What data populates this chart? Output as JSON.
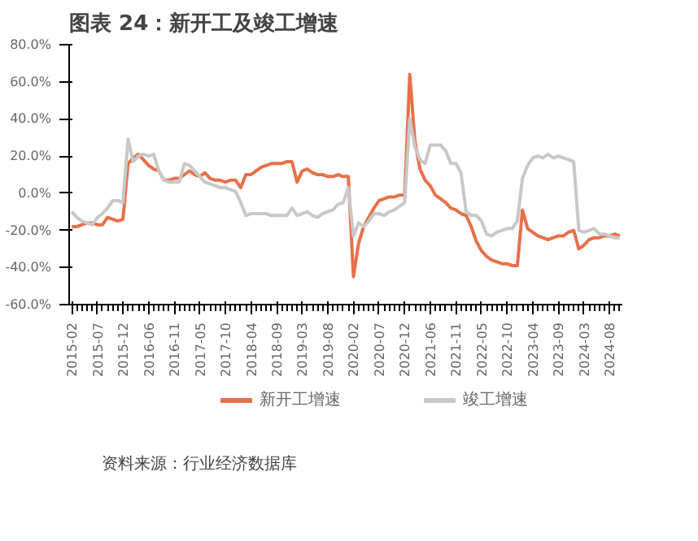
{
  "chart_data": {
    "type": "line",
    "title": "图表 24：新开工及竣工增速",
    "categories": [
      "2015-02",
      null,
      null,
      null,
      null,
      "2015-07",
      null,
      null,
      null,
      null,
      "2015-12",
      null,
      null,
      null,
      null,
      "2016-06",
      null,
      null,
      null,
      null,
      "2016-11",
      null,
      null,
      null,
      null,
      "2017-05",
      null,
      null,
      null,
      null,
      "2017-10",
      null,
      null,
      null,
      null,
      "2018-04",
      null,
      null,
      null,
      null,
      "2018-09",
      null,
      null,
      null,
      null,
      "2019-03",
      null,
      null,
      null,
      null,
      "2019-08",
      null,
      null,
      null,
      null,
      "2020-02",
      null,
      null,
      null,
      null,
      "2020-07",
      null,
      null,
      null,
      null,
      "2020-12",
      null,
      null,
      null,
      null,
      "2021-06",
      null,
      null,
      null,
      null,
      "2021-11",
      null,
      null,
      null,
      null,
      "2022-05",
      null,
      null,
      null,
      null,
      "2022-10",
      null,
      null,
      null,
      null,
      "2023-04",
      null,
      null,
      null,
      null,
      "2023-09",
      null,
      null,
      null,
      null,
      "2024-03",
      null,
      null,
      null,
      null,
      "2024-08",
      null,
      null
    ],
    "series": [
      {
        "name": "新开工增速",
        "color": "#e8704a",
        "values": [
          -18,
          -18,
          -17,
          -16,
          -16,
          -17,
          -17,
          -13,
          -14,
          -15,
          -14,
          16,
          19,
          21,
          18,
          15,
          13,
          12,
          7,
          7,
          8,
          8,
          10,
          12,
          10,
          9,
          11,
          8,
          7,
          7,
          6,
          7,
          7,
          3,
          10,
          10,
          12,
          14,
          15,
          16,
          16,
          16,
          17,
          17,
          6,
          12,
          13,
          11,
          10,
          10,
          9,
          9,
          10,
          9,
          9,
          -45,
          -27,
          -18,
          -13,
          -8,
          -4,
          -3,
          -2,
          -2,
          -1,
          -1,
          64,
          28,
          13,
          7,
          4,
          -1,
          -3,
          -5,
          -8,
          -9,
          -11,
          -12,
          -18,
          -26,
          -31,
          -34,
          -36,
          -37,
          -38,
          -38,
          -39,
          -39,
          -9,
          -19,
          -21,
          -23,
          -24,
          -25,
          -24,
          -23,
          -23,
          -21,
          -20,
          -30,
          -28,
          -25,
          -24,
          -24,
          -23,
          -23,
          -22,
          -23
        ]
      },
      {
        "name": "竣工增速",
        "color": "#c8c8c8",
        "values": [
          -10,
          -13,
          -15,
          -16,
          -17,
          -13,
          -11,
          -8,
          -4,
          -4,
          -5,
          29,
          17,
          20,
          21,
          20,
          21,
          12,
          7,
          6,
          6,
          6,
          16,
          15,
          12,
          9,
          6,
          5,
          4,
          3,
          3,
          2,
          1,
          -5,
          -12,
          -11,
          -11,
          -11,
          -11,
          -12,
          -12,
          -12,
          -12,
          -8,
          -12,
          -11,
          -10,
          -12,
          -13,
          -11,
          -10,
          -9,
          -6,
          -5,
          3,
          -23,
          -16,
          -18,
          -15,
          -11,
          -11,
          -12,
          -10,
          -9,
          -7,
          -5,
          40,
          25,
          18,
          16,
          26,
          26,
          26,
          23,
          16,
          16,
          11,
          -10,
          -12,
          -12,
          -15,
          -22,
          -23,
          -21,
          -20,
          -19,
          -19,
          -15,
          8,
          15,
          19,
          20,
          19,
          21,
          19,
          20,
          19,
          18,
          17,
          -20,
          -21,
          -20,
          -19,
          -22,
          -22,
          -23,
          -24,
          -24
        ]
      }
    ],
    "ylim": [
      -60,
      80
    ],
    "yticks": [
      {
        "value": -60,
        "label": "-60.0%"
      },
      {
        "value": -40,
        "label": "-40.0%"
      },
      {
        "value": -20,
        "label": "-20.0%"
      },
      {
        "value": 0,
        "label": "0.0%"
      },
      {
        "value": 20,
        "label": "20.0%"
      },
      {
        "value": 40,
        "label": "40.0%"
      },
      {
        "value": 60,
        "label": "60.0%"
      },
      {
        "value": 80,
        "label": "80.0%"
      }
    ],
    "grid": false,
    "legend": "bottom",
    "marker": "none",
    "line_style": "solid",
    "annotations": [
      "资料来源：行业经济数据库"
    ]
  }
}
